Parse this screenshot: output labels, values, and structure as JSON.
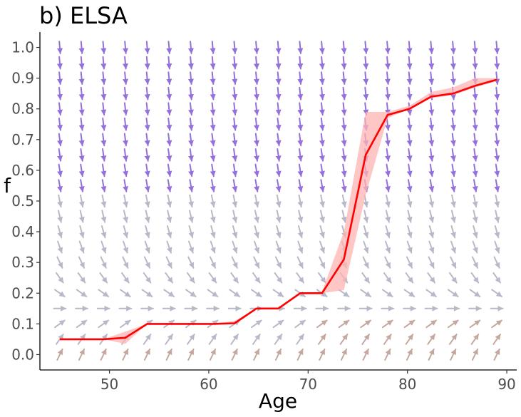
{
  "chart_data": {
    "type": "line",
    "title": "b) ELSA",
    "xlabel": "Age",
    "ylabel": "f",
    "xlim": [
      43,
      91
    ],
    "ylim": [
      -0.05,
      1.05
    ],
    "x_ticks": [
      50,
      60,
      70,
      80,
      90
    ],
    "x_tick_labels": [
      "50",
      "60",
      "70",
      "80",
      "90"
    ],
    "y_ticks": [
      0.0,
      0.1,
      0.2,
      0.3,
      0.4,
      0.5,
      0.6,
      0.7,
      0.8,
      0.9,
      1.0
    ],
    "y_tick_labels": [
      "0.0",
      "0.1",
      "0.2",
      "0.3",
      "0.4",
      "0.5",
      "0.6",
      "0.7",
      "0.8",
      "0.9",
      "1.0"
    ],
    "grid": false,
    "legend": "none",
    "colors": {
      "line": "#ff0000",
      "ribbon": "#ffb3b3",
      "arrow_high_f": "#9370db",
      "arrow_mid_f": "#b8b8c8",
      "arrow_low_f": "#c4a8a0"
    },
    "series": [
      {
        "x": [
          45,
          47.2,
          49.4,
          51.6,
          53.8,
          56,
          58.2,
          60.4,
          62.6,
          64.8,
          67,
          69.2,
          71.4,
          73.6,
          75.8,
          78,
          80.2,
          82.4,
          84.6,
          86.8,
          89
        ],
        "y": [
          0.05,
          0.05,
          0.05,
          0.055,
          0.1,
          0.1,
          0.1,
          0.1,
          0.102,
          0.15,
          0.15,
          0.2,
          0.2,
          0.31,
          0.65,
          0.78,
          0.8,
          0.84,
          0.85,
          0.875,
          0.895
        ],
        "lower": [
          0.05,
          0.05,
          0.05,
          0.035,
          0.1,
          0.1,
          0.1,
          0.1,
          0.1,
          0.15,
          0.15,
          0.2,
          0.2,
          0.21,
          0.52,
          0.77,
          0.8,
          0.835,
          0.845,
          0.87,
          0.89
        ],
        "upper": [
          0.05,
          0.05,
          0.05,
          0.075,
          0.1,
          0.1,
          0.1,
          0.1,
          0.11,
          0.15,
          0.15,
          0.2,
          0.205,
          0.4,
          0.79,
          0.79,
          0.81,
          0.855,
          0.87,
          0.9,
          0.9
        ]
      }
    ],
    "vector_field": {
      "x": [
        45,
        47.2,
        49.4,
        51.6,
        53.8,
        56,
        58.2,
        60.4,
        62.6,
        64.8,
        67,
        69.2,
        71.4,
        73.6,
        75.8,
        78,
        80.2,
        82.4,
        84.6,
        86.8,
        89
      ],
      "y": [
        0.0,
        0.05,
        0.1,
        0.15,
        0.2,
        0.25,
        0.3,
        0.35,
        0.4,
        0.45,
        0.5,
        0.55,
        0.6,
        0.65,
        0.7,
        0.75,
        0.8,
        0.85,
        0.9,
        0.95,
        1.0
      ],
      "equilibrium_f": 0.15,
      "rate_gain": 1.0
    }
  }
}
